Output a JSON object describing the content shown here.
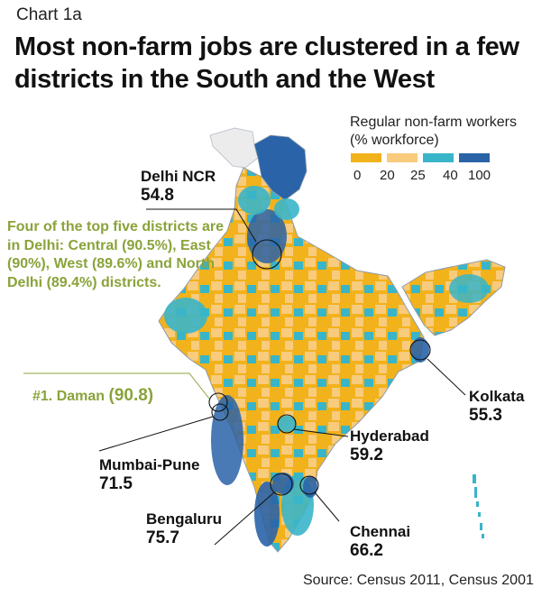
{
  "chart_label": "Chart 1a",
  "title": "Most non-farm jobs are clustered in a few districts in the South and the West",
  "legend": {
    "title_line1": "Regular non-farm workers",
    "title_line2": "(% workforce)",
    "ticks": [
      "0",
      "20",
      "25",
      "40",
      "100"
    ],
    "colors": [
      "#f2b21b",
      "#f8cb7d",
      "#38b5c9",
      "#2a63a8"
    ]
  },
  "colors": {
    "accent_green": "#8aa33a",
    "no_data": "#ececec",
    "border": "#8f9cab"
  },
  "cities": {
    "delhi": {
      "name": "Delhi NCR",
      "value": "54.8"
    },
    "kolkata": {
      "name": "Kolkata",
      "value": "55.3"
    },
    "hyderabad": {
      "name": "Hyderabad",
      "value": "59.2"
    },
    "mumbai": {
      "name": "Mumbai-Pune",
      "value": "71.5"
    },
    "bengaluru": {
      "name": "Bengaluru",
      "value": "75.7"
    },
    "chennai": {
      "name": "Chennai",
      "value": "66.2"
    }
  },
  "note": "Four of the top five districts are in Delhi: Central (90.5%), East (90%), West (89.6%) and North Delhi (89.4%) districts.",
  "daman": {
    "label": "#1. Daman",
    "value": "(90.8)"
  },
  "source": "Source: Census 2011, Census 2001"
}
